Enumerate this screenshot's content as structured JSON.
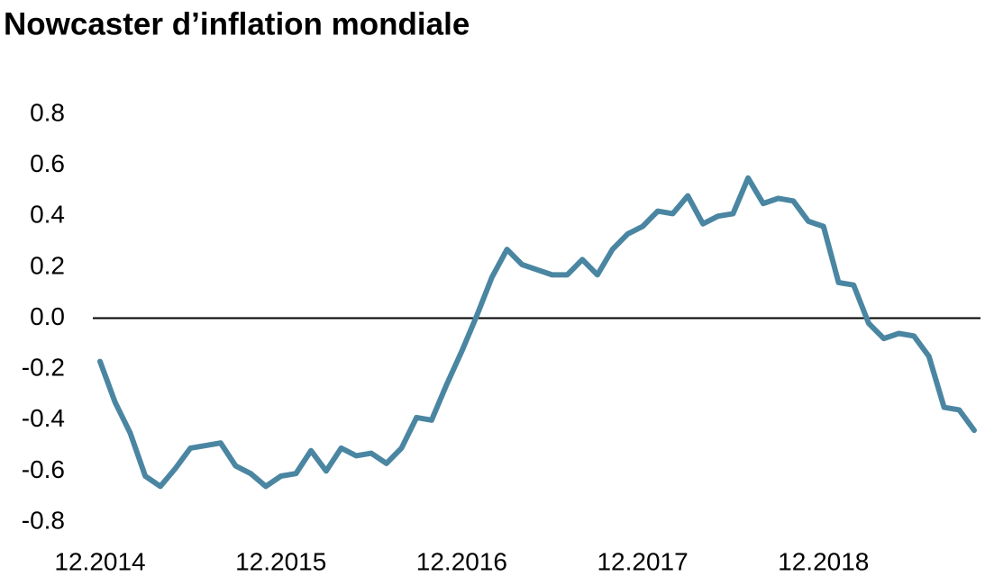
{
  "chart_data": {
    "type": "line",
    "title": "Nowcaster d’inflation mondiale",
    "categories": [
      "12.2014",
      null,
      null,
      null,
      null,
      null,
      null,
      null,
      null,
      null,
      null,
      null,
      "12.2015",
      null,
      null,
      null,
      null,
      null,
      null,
      null,
      null,
      null,
      null,
      null,
      "12.2016",
      null,
      null,
      null,
      null,
      null,
      null,
      null,
      null,
      null,
      null,
      null,
      "12.2017",
      null,
      null,
      null,
      null,
      null,
      null,
      null,
      null,
      null,
      null,
      null,
      "12.2018",
      null,
      null,
      null,
      null,
      null,
      null,
      null,
      null,
      null,
      null
    ],
    "series": [
      {
        "color": "#4a86a2",
        "values": [
          -0.17,
          -0.33,
          -0.45,
          -0.62,
          -0.66,
          -0.59,
          -0.51,
          -0.5,
          -0.49,
          -0.58,
          -0.61,
          -0.66,
          -0.62,
          -0.61,
          -0.52,
          -0.6,
          -0.51,
          -0.54,
          -0.53,
          -0.57,
          -0.51,
          -0.39,
          -0.4,
          -0.26,
          -0.13,
          0.01,
          0.16,
          0.27,
          0.21,
          0.19,
          0.17,
          0.17,
          0.23,
          0.17,
          0.27,
          0.33,
          0.36,
          0.42,
          0.41,
          0.48,
          0.37,
          0.4,
          0.41,
          0.55,
          0.45,
          0.47,
          0.46,
          0.38,
          0.36,
          0.14,
          0.13,
          -0.02,
          -0.08,
          -0.06,
          -0.07,
          -0.15,
          -0.35,
          -0.36,
          -0.44
        ]
      }
    ],
    "ylim": [
      -0.8,
      0.8
    ],
    "yticks": [
      -0.8,
      -0.6,
      -0.4,
      -0.2,
      {
        "value": 0,
        "label": "0.0"
      },
      0.2,
      0.4,
      0.6,
      0.8
    ],
    "grid": false
  }
}
